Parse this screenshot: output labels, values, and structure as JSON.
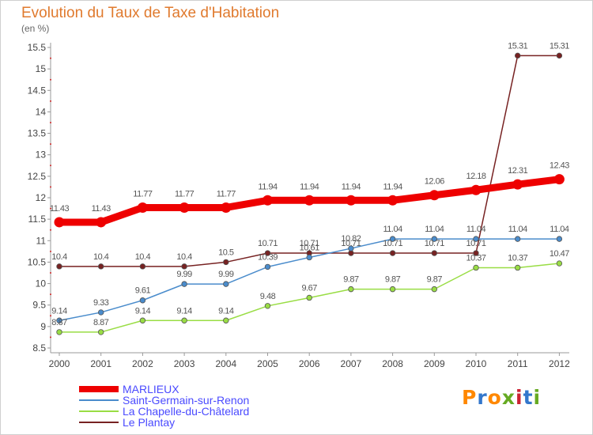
{
  "title": "Evolution du Taux de Taxe d'Habitation",
  "unit_label": "(en %)",
  "brand": "Proxiti",
  "chart_data": {
    "type": "line",
    "x": [
      "2000",
      "2001",
      "2002",
      "2003",
      "2004",
      "2005",
      "2006",
      "2007",
      "2008",
      "2009",
      "2010",
      "2011",
      "2012"
    ],
    "ylim": [
      8.5,
      15.5
    ],
    "yticks": [
      "8.5",
      "9",
      "9.5",
      "10",
      "10.5",
      "11",
      "11.5",
      "12",
      "12.5",
      "13",
      "13.5",
      "14",
      "14.5",
      "15",
      "15.5"
    ],
    "grid": false,
    "legend": "bottom-left",
    "series": [
      {
        "name": "MARLIEUX",
        "color": "#ee0000",
        "values": [
          11.43,
          11.43,
          11.77,
          11.77,
          11.77,
          11.94,
          11.94,
          11.94,
          11.94,
          12.06,
          12.18,
          12.31,
          12.43
        ],
        "labels": [
          "11.43",
          "11.43",
          "11.77",
          "11.77",
          "11.77",
          "11.94",
          "11.94",
          "11.94",
          "11.94",
          "12.06",
          "12.18",
          "12.31",
          "12.43"
        ]
      },
      {
        "name": "Saint-Germain-sur-Renon",
        "color": "#4a8ccc",
        "values": [
          9.14,
          9.33,
          9.61,
          9.99,
          9.99,
          10.39,
          10.61,
          10.82,
          11.04,
          11.04,
          11.04,
          11.04,
          11.04
        ],
        "labels": [
          "9.14",
          "9.33",
          "9.61",
          "9.99",
          "9.99",
          "10.39",
          "10.61",
          "10.82",
          "11.04",
          "11.04",
          "11.04",
          "11.04",
          "11.04"
        ]
      },
      {
        "name": "La Chapelle-du-Châtelard",
        "color": "#99dd44",
        "values": [
          8.87,
          8.87,
          9.14,
          9.14,
          9.14,
          9.48,
          9.67,
          9.87,
          9.87,
          9.87,
          10.37,
          10.37,
          10.47
        ],
        "labels": [
          "8.87",
          "8.87",
          "9.14",
          "9.14",
          "9.14",
          "9.48",
          "9.67",
          "9.87",
          "9.87",
          "9.87",
          "10.37",
          "10.37",
          "10.47"
        ]
      },
      {
        "name": "Le Plantay",
        "color": "#772222",
        "values": [
          10.4,
          10.4,
          10.4,
          10.4,
          10.5,
          10.71,
          10.71,
          10.71,
          10.71,
          10.71,
          10.71,
          15.31,
          15.31
        ],
        "labels": [
          "10.4",
          "10.4",
          "10.4",
          "10.4",
          "10.5",
          "10.71",
          "10.71",
          "10.71",
          "10.71",
          "10.71",
          "10.71",
          "15.31",
          "15.31"
        ]
      }
    ]
  }
}
